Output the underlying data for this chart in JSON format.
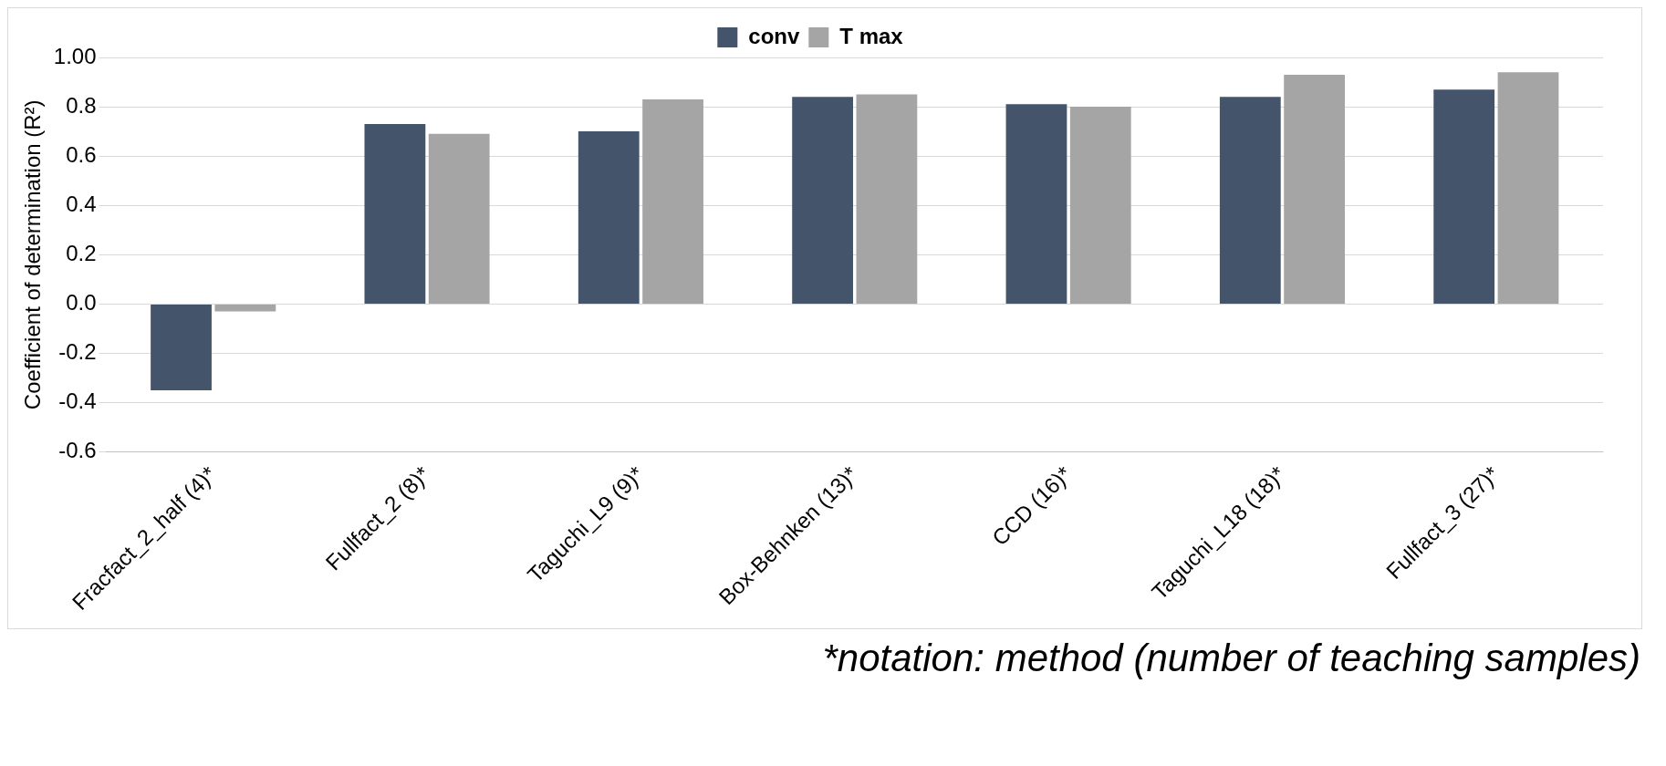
{
  "chart_data": {
    "type": "bar",
    "ylabel": "Coefficient of determination (R²)",
    "categories": [
      "Fracfact_2_half (4)*",
      "Fullfact_2 (8)*",
      "Taguchi_L9 (9)*",
      "Box-Behnken (13)*",
      "CCD (16)*",
      "Taguchi_L18 (18)*",
      "Fullfact_3 (27)*"
    ],
    "series": [
      {
        "name": "conv",
        "color": "#44546a",
        "values": [
          -0.35,
          0.73,
          0.7,
          0.84,
          0.81,
          0.84,
          0.87
        ]
      },
      {
        "name": "T max",
        "color": "#a5a5a5",
        "values": [
          -0.03,
          0.69,
          0.83,
          0.85,
          0.8,
          0.93,
          0.94
        ]
      }
    ],
    "ylim": [
      -0.6,
      1.0
    ],
    "yticks": [
      -0.6,
      -0.4,
      -0.2,
      {
        "value": 0,
        "label": "0.0"
      },
      0.2,
      0.4,
      0.6,
      0.8,
      {
        "value": 1,
        "label": "1.00"
      }
    ],
    "grid": "y",
    "legend": "top",
    "annotations": [
      "*notation: method (number of teaching samples)"
    ]
  }
}
